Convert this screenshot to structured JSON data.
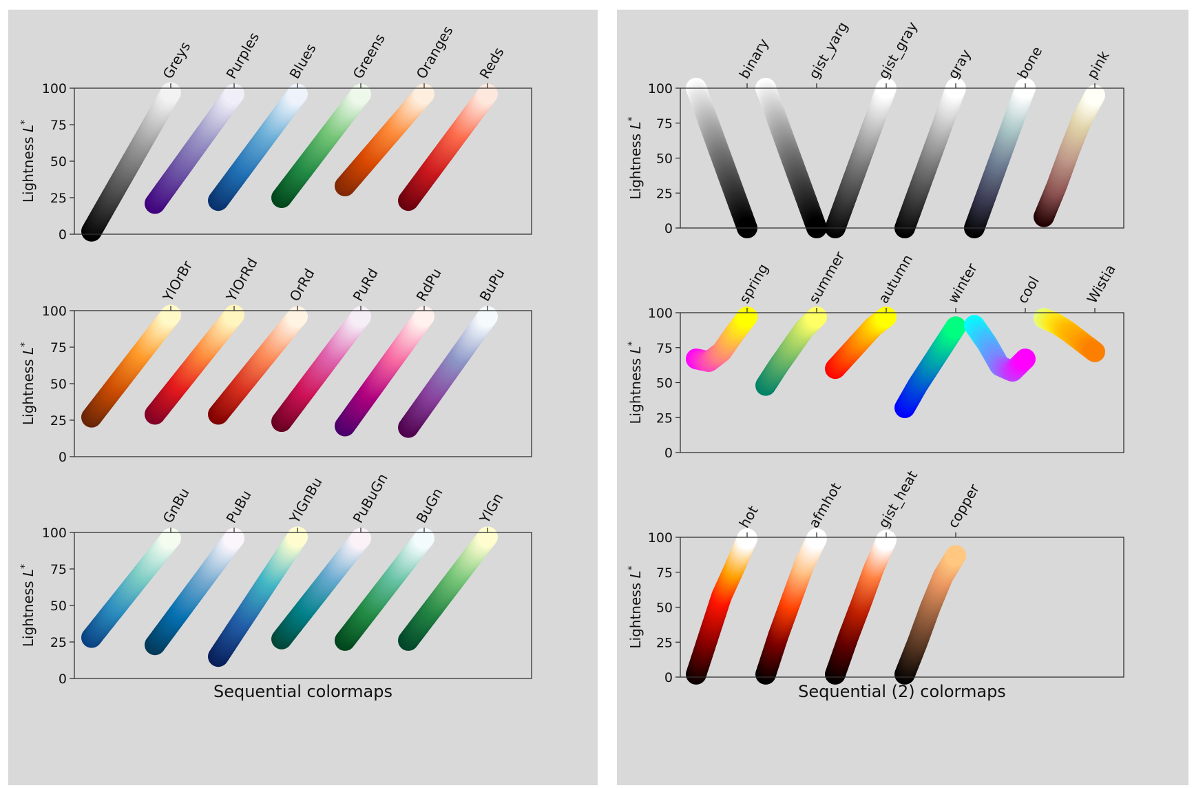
{
  "chart_data": [
    {
      "type": "scatter",
      "title": "Sequential colormaps",
      "ylabel": "Lightness L*",
      "ylim": [
        0,
        100
      ],
      "yticks": [
        0,
        25,
        50,
        75,
        100
      ],
      "subplots": [
        {
          "colormaps": [
            {
              "name": "Greys",
              "lightness_start": 2,
              "lightness_end": 97,
              "colors": [
                "#000000",
                "#4d4d4d",
                "#9a9a9a",
                "#f2f2f2"
              ]
            },
            {
              "name": "Purples",
              "lightness_start": 21,
              "lightness_end": 96,
              "colors": [
                "#3f007d",
                "#6a51a3",
                "#9e9ac8",
                "#f0eff7"
              ]
            },
            {
              "name": "Blues",
              "lightness_start": 23,
              "lightness_end": 96,
              "colors": [
                "#08306b",
                "#2171b5",
                "#6baed6",
                "#eef3fb"
              ]
            },
            {
              "name": "Greens",
              "lightness_start": 25,
              "lightness_end": 96,
              "colors": [
                "#00441b",
                "#238b45",
                "#74c476",
                "#eef8ea"
              ]
            },
            {
              "name": "Oranges",
              "lightness_start": 33,
              "lightness_end": 96,
              "colors": [
                "#7f2704",
                "#d94801",
                "#fd8d3c",
                "#fdeedd"
              ]
            },
            {
              "name": "Reds",
              "lightness_start": 23,
              "lightness_end": 96,
              "colors": [
                "#67000d",
                "#cb181d",
                "#fb6a4a",
                "#fee8de"
              ]
            }
          ]
        },
        {
          "colormaps": [
            {
              "name": "YlOrBr",
              "lightness_start": 27,
              "lightness_end": 97,
              "colors": [
                "#662506",
                "#cc4c02",
                "#fe9929",
                "#fff9c8"
              ]
            },
            {
              "name": "YlOrRd",
              "lightness_start": 29,
              "lightness_end": 97,
              "colors": [
                "#800026",
                "#e31a1c",
                "#fd8d3c",
                "#fff6bf"
              ]
            },
            {
              "name": "OrRd",
              "lightness_start": 29,
              "lightness_end": 96,
              "colors": [
                "#7f0000",
                "#d7301f",
                "#fc8d59",
                "#fff3e4"
              ]
            },
            {
              "name": "PuRd",
              "lightness_start": 24,
              "lightness_end": 96,
              "colors": [
                "#67001f",
                "#ce1256",
                "#df65b0",
                "#f5eef7"
              ]
            },
            {
              "name": "RdPu",
              "lightness_start": 21,
              "lightness_end": 96,
              "colors": [
                "#49006a",
                "#ae017e",
                "#f768a1",
                "#fff1ed"
              ]
            },
            {
              "name": "BuPu",
              "lightness_start": 20,
              "lightness_end": 96,
              "colors": [
                "#4d004b",
                "#88419d",
                "#8c96c6",
                "#f5fbfd"
              ]
            }
          ]
        },
        {
          "colormaps": [
            {
              "name": "GnBu",
              "lightness_start": 28,
              "lightness_end": 96,
              "colors": [
                "#084081",
                "#2b8cbe",
                "#7bccc4",
                "#f4fbef"
              ]
            },
            {
              "name": "PuBu",
              "lightness_start": 23,
              "lightness_end": 96,
              "colors": [
                "#023858",
                "#0570b0",
                "#74a9cf",
                "#fbf6fb"
              ]
            },
            {
              "name": "YlGnBu",
              "lightness_start": 15,
              "lightness_end": 97,
              "colors": [
                "#081d58",
                "#225ea8",
                "#41b6c4",
                "#fffdd0"
              ]
            },
            {
              "name": "PuBuGn",
              "lightness_start": 27,
              "lightness_end": 96,
              "colors": [
                "#014636",
                "#02818a",
                "#67a9cf",
                "#fbf2f8"
              ]
            },
            {
              "name": "BuGn",
              "lightness_start": 26,
              "lightness_end": 96,
              "colors": [
                "#00441b",
                "#238b45",
                "#66c2a4",
                "#f4fbfd"
              ]
            },
            {
              "name": "YlGn",
              "lightness_start": 26,
              "lightness_end": 97,
              "colors": [
                "#004529",
                "#238443",
                "#78c679",
                "#fffdd0"
              ]
            }
          ]
        }
      ]
    },
    {
      "type": "scatter",
      "title": "Sequential (2) colormaps",
      "ylabel": "Lightness L*",
      "ylim": [
        0,
        100
      ],
      "yticks": [
        0,
        25,
        50,
        75,
        100
      ],
      "subplots": [
        {
          "colormaps": [
            {
              "name": "binary",
              "lightness": [
                100,
                75,
                50,
                25,
                0
              ],
              "colors": [
                "#ffffff",
                "#bbbbbb",
                "#777777",
                "#3b3b3b",
                "#000000"
              ]
            },
            {
              "name": "gist_yarg",
              "lightness": [
                100,
                75,
                50,
                25,
                0
              ],
              "colors": [
                "#ffffff",
                "#bbbbbb",
                "#777777",
                "#3b3b3b",
                "#000000"
              ]
            },
            {
              "name": "gist_gray",
              "lightness": [
                0,
                25,
                50,
                75,
                100
              ],
              "colors": [
                "#000000",
                "#3b3b3b",
                "#777777",
                "#bbbbbb",
                "#ffffff"
              ]
            },
            {
              "name": "gray",
              "lightness": [
                0,
                25,
                50,
                75,
                100
              ],
              "colors": [
                "#000000",
                "#3b3b3b",
                "#777777",
                "#bbbbbb",
                "#ffffff"
              ]
            },
            {
              "name": "bone",
              "lightness": [
                0,
                25,
                50,
                75,
                100
              ],
              "colors": [
                "#000000",
                "#3a3a52",
                "#6b7a8f",
                "#a8c4c4",
                "#ffffff"
              ]
            },
            {
              "name": "pink",
              "lightness": [
                8,
                30,
                55,
                78,
                95
              ],
              "colors": [
                "#1e0000",
                "#8a5050",
                "#c09a8a",
                "#e0d3a8",
                "#fffff5"
              ]
            }
          ]
        },
        {
          "colormaps": [
            {
              "name": "spring",
              "lightness": [
                67,
                65,
                72,
                85,
                97
              ],
              "colors": [
                "#ff00ff",
                "#ff40bf",
                "#ff8080",
                "#ffbf40",
                "#ffff00"
              ]
            },
            {
              "name": "summer",
              "lightness": [
                48,
                62,
                75,
                88,
                97
              ],
              "colors": [
                "#008066",
                "#409f66",
                "#80c066",
                "#bfdf66",
                "#ffff66"
              ]
            },
            {
              "name": "autumn",
              "lightness": [
                60,
                70,
                80,
                90,
                97
              ],
              "colors": [
                "#ff0000",
                "#ff4000",
                "#ff8000",
                "#ffbf00",
                "#ffff00"
              ]
            },
            {
              "name": "winter",
              "lightness": [
                32,
                48,
                62,
                76,
                90
              ],
              "colors": [
                "#0000ff",
                "#0040df",
                "#0080bf",
                "#00bf9f",
                "#00ff80"
              ]
            },
            {
              "name": "cool",
              "lightness": [
                91,
                78,
                62,
                58,
                67
              ],
              "colors": [
                "#00ffff",
                "#40bfff",
                "#8080ff",
                "#bf40ff",
                "#ff00ff"
              ]
            },
            {
              "name": "Wistia",
              "lightness": [
                96,
                92,
                86,
                79,
                72
              ],
              "colors": [
                "#e4ff7a",
                "#ffe81a",
                "#ffbd00",
                "#ffa000",
                "#fc7f00"
              ]
            }
          ]
        },
        {
          "colormaps": [
            {
              "name": "hot",
              "lightness": [
                2,
                30,
                58,
                78,
                99
              ],
              "colors": [
                "#0b0000",
                "#8a0000",
                "#ff1400",
                "#ffa000",
                "#ffffff"
              ]
            },
            {
              "name": "afmhot",
              "lightness": [
                2,
                30,
                55,
                80,
                99
              ],
              "colors": [
                "#000000",
                "#800000",
                "#ff4000",
                "#ffbf80",
                "#ffffff"
              ]
            },
            {
              "name": "gist_heat",
              "lightness": [
                2,
                28,
                52,
                77,
                98
              ],
              "colors": [
                "#000000",
                "#600000",
                "#c02000",
                "#ff8040",
                "#ffffff"
              ]
            },
            {
              "name": "copper",
              "lightness": [
                2,
                25,
                50,
                72,
                87
              ],
              "colors": [
                "#000000",
                "#4e3120",
                "#9c6340",
                "#ea9560",
                "#ffc77f"
              ]
            }
          ]
        }
      ]
    }
  ]
}
